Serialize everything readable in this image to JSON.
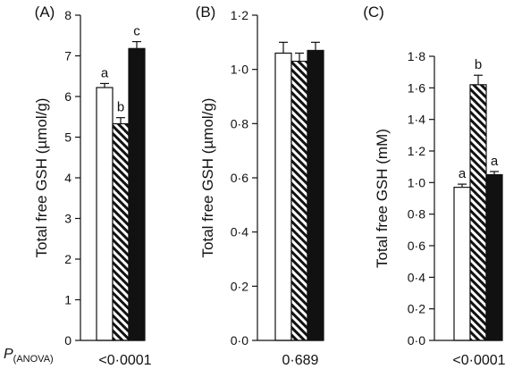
{
  "p_label": {
    "main": "P",
    "sub": "(ANOVA)"
  },
  "chart_data": [
    {
      "type": "bar",
      "panel_label": "(A)",
      "ylabel": "Total free GSH (µmol/g)",
      "ylim": [
        0,
        8
      ],
      "yticks": [
        "0",
        "1",
        "2",
        "3",
        "4",
        "5",
        "6",
        "7",
        "8"
      ],
      "series": [
        {
          "pattern": "open",
          "value": 6.22,
          "error": 0.1,
          "letter": "a"
        },
        {
          "pattern": "hatched",
          "value": 5.33,
          "error": 0.15,
          "letter": "b"
        },
        {
          "pattern": "solid",
          "value": 7.18,
          "error": 0.17,
          "letter": "c"
        }
      ],
      "p_anova": "<0·0001"
    },
    {
      "type": "bar",
      "panel_label": "(B)",
      "ylabel": "Total free GSH (µmol/g)",
      "ylim": [
        0,
        1.2
      ],
      "yticks": [
        "0·0",
        "0·2",
        "0·4",
        "0·6",
        "0·8",
        "1·0",
        "1·2"
      ],
      "series": [
        {
          "pattern": "open",
          "value": 1.06,
          "error": 0.04,
          "letter": ""
        },
        {
          "pattern": "hatched",
          "value": 1.03,
          "error": 0.03,
          "letter": ""
        },
        {
          "pattern": "solid",
          "value": 1.07,
          "error": 0.03,
          "letter": ""
        }
      ],
      "p_anova": "0·689"
    },
    {
      "type": "bar",
      "panel_label": "(C)",
      "ylabel": "Total free GSH (mM)",
      "ylim": [
        0,
        1.8
      ],
      "yticks": [
        "0·0",
        "0·2",
        "0·4",
        "0·6",
        "0·8",
        "1·0",
        "1·2",
        "1·4",
        "1·6",
        "1·8"
      ],
      "series": [
        {
          "pattern": "open",
          "value": 0.97,
          "error": 0.02,
          "letter": "a"
        },
        {
          "pattern": "hatched",
          "value": 1.62,
          "error": 0.06,
          "letter": "b"
        },
        {
          "pattern": "solid",
          "value": 1.05,
          "error": 0.02,
          "letter": "a"
        }
      ],
      "p_anova": "<0·0001"
    }
  ]
}
